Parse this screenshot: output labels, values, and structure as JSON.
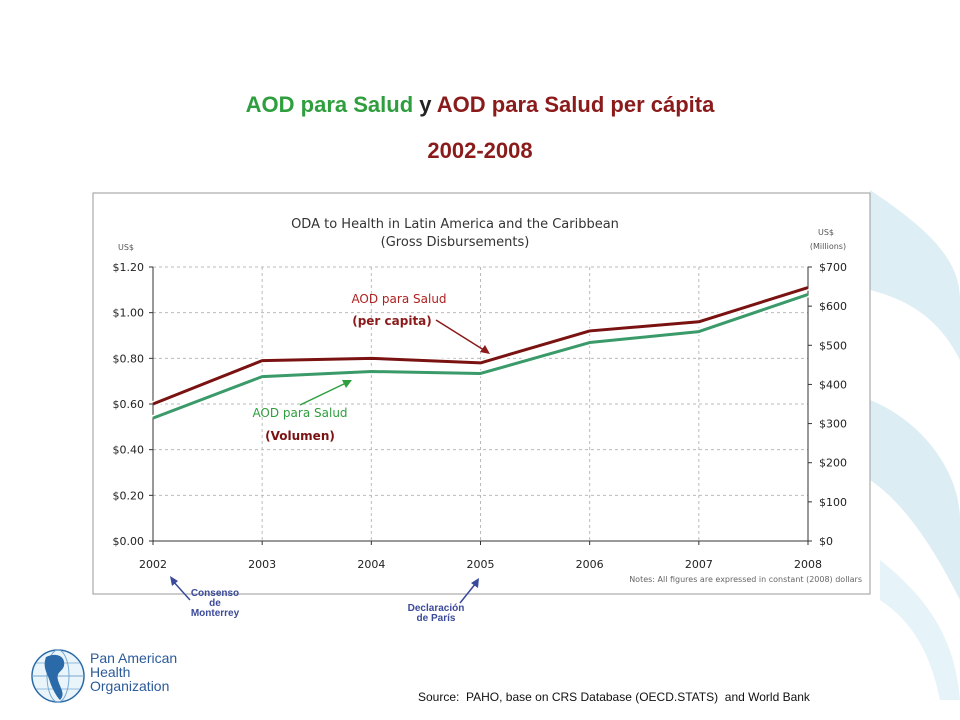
{
  "slide": {
    "title_part1": "AOD para Salud",
    "title_connector": " y ",
    "title_part2": "AOD para Salud per cápita",
    "subtitle": "2002-2008"
  },
  "colors": {
    "percapita": "#7a1212",
    "volume": "#3a9a6a",
    "green_text": "#2e9e3e",
    "red_text": "#8b1a1a",
    "blue_annot": "#3b4a9a"
  },
  "chart_data": {
    "type": "line",
    "title": "ODA to Health in Latin America and the Caribbean",
    "subtitle": "(Gross Disbursements)",
    "left_axis_label": "US$",
    "right_axis_label_1": "US$",
    "right_axis_label_2": "(Millions)",
    "x": [
      "2002",
      "2003",
      "2004",
      "2005",
      "2006",
      "2007",
      "2008"
    ],
    "left_ticks": [
      "$0.00",
      "$0.20",
      "$0.40",
      "$0.60",
      "$0.80",
      "$1.00",
      "$1.20"
    ],
    "right_ticks": [
      "$0",
      "$100",
      "$200",
      "$300",
      "$400",
      "$500",
      "$600",
      "$700"
    ],
    "ylim_left": [
      0,
      1.2
    ],
    "ylim_right": [
      0,
      700
    ],
    "grid": true,
    "series": [
      {
        "name": "AOD para Salud (per capita)",
        "axis": "left",
        "values": [
          0.6,
          0.79,
          0.8,
          0.78,
          0.92,
          0.96,
          1.11
        ]
      },
      {
        "name": "AOD para Salud (Volumen)",
        "axis": "right",
        "values": [
          314,
          420,
          433,
          428,
          507,
          535,
          630
        ]
      }
    ],
    "label_percapita_1": "AOD para Salud",
    "label_percapita_2": "(per capita)",
    "label_volume_1": "AOD para Salud",
    "label_volume_2": "(Volumen)",
    "note": "Notes: All figures are expressed in constant (2008) dollars"
  },
  "annotations": {
    "consenso_1": "Consenso",
    "consenso_2": "de",
    "consenso_3": "Monterrey",
    "paris_1": "Declaración",
    "paris_2": "de París"
  },
  "logo": {
    "line1": "Pan American",
    "line2": "Health",
    "line3": "Organization"
  },
  "source": "Source:  PAHO, base on CRS Database (OECD.STATS)  and World Bank"
}
